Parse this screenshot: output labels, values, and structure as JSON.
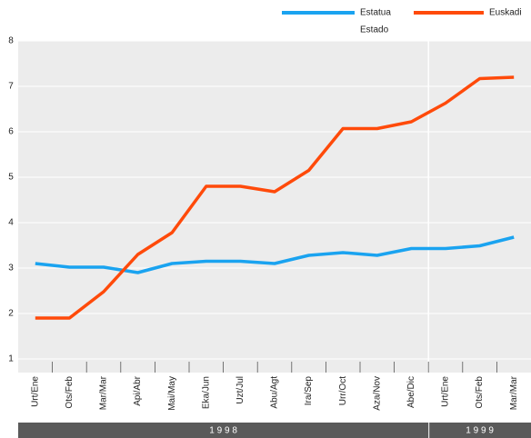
{
  "chart_data": {
    "type": "line",
    "categories": [
      "Urt/Ene",
      "Ots/Feb",
      "Mar/Mar",
      "Api/Abr",
      "Mai/May",
      "Eka/Jun",
      "Uzt/Jul",
      "Abu/Agt",
      "Ira/Sep",
      "Urr/Oct",
      "Aza/Nov",
      "Abe/Dic",
      "Urt/Ene",
      "Ots/Feb",
      "Mar/Mar"
    ],
    "series": [
      {
        "name": "Estatua",
        "name2": "Estado",
        "color": "#1aa3f0",
        "values": [
          3.1,
          3.02,
          3.02,
          2.9,
          3.1,
          3.15,
          3.15,
          3.1,
          3.28,
          3.34,
          3.28,
          3.43,
          3.43,
          3.49,
          3.68
        ]
      },
      {
        "name": "Euskadi",
        "color": "#ff4a0a",
        "values": [
          1.9,
          1.9,
          2.48,
          3.3,
          3.78,
          4.8,
          4.8,
          4.68,
          5.15,
          6.07,
          6.07,
          6.22,
          6.63,
          7.17,
          7.2
        ]
      }
    ],
    "years": [
      {
        "label": "1 9 9 8",
        "count": 12
      },
      {
        "label": "1 9 9 9",
        "count": 3
      }
    ],
    "ylim": [
      0.7,
      8
    ],
    "yticks": [
      1,
      2,
      3,
      4,
      5,
      6,
      7,
      8
    ],
    "grid": true
  }
}
